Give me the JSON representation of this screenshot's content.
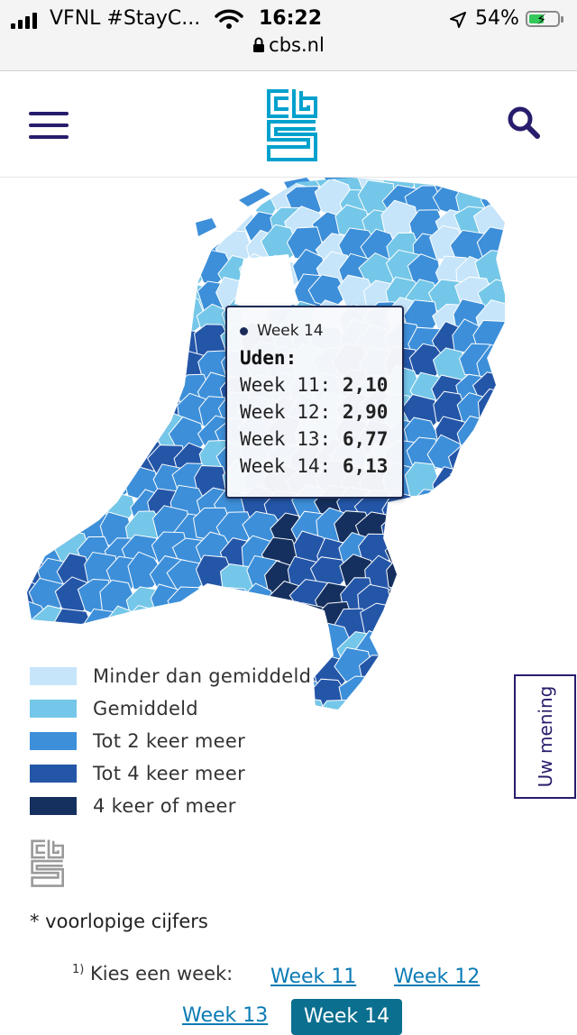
{
  "status_bar": {
    "carrier": "VFNL #StayC...",
    "time": "16:22",
    "battery": "54%",
    "battery_level": 0.54,
    "url": "cbs.nl"
  },
  "header": {
    "menu_icon": "hamburger-menu-icon",
    "logo_icon": "cbs-logo-icon",
    "search_icon": "search-icon"
  },
  "tooltip": {
    "series": "Week 14",
    "place": "Uden:",
    "rows": [
      {
        "label": "Week 11:",
        "value": "2,10"
      },
      {
        "label": "Week 12:",
        "value": "2,90"
      },
      {
        "label": "Week 13:",
        "value": "6,77"
      },
      {
        "label": "Week 14:",
        "value": "6,13"
      }
    ]
  },
  "legend": [
    {
      "label": "Minder dan gemiddeld",
      "color": "#c6e5fa"
    },
    {
      "label": "Gemiddeld",
      "color": "#74c7e8"
    },
    {
      "label": "Tot 2 keer meer",
      "color": "#3d8fd9"
    },
    {
      "label": "Tot 4 keer meer",
      "color": "#2456a8"
    },
    {
      "label": "4 keer of meer",
      "color": "#15305e"
    }
  ],
  "feedback_label": "Uw mening",
  "note": "* voorlopige cijfers",
  "week_chooser": {
    "footnote": "1)",
    "label": "Kies een week:",
    "weeks": [
      "Week 11",
      "Week 12",
      "Week 13",
      "Week 14"
    ],
    "active": "Week 14"
  },
  "colors": {
    "brand": "#271d6c",
    "logo": "#00a1cd",
    "link": "#0b7bb5",
    "active_button": "#0b6f8f"
  }
}
